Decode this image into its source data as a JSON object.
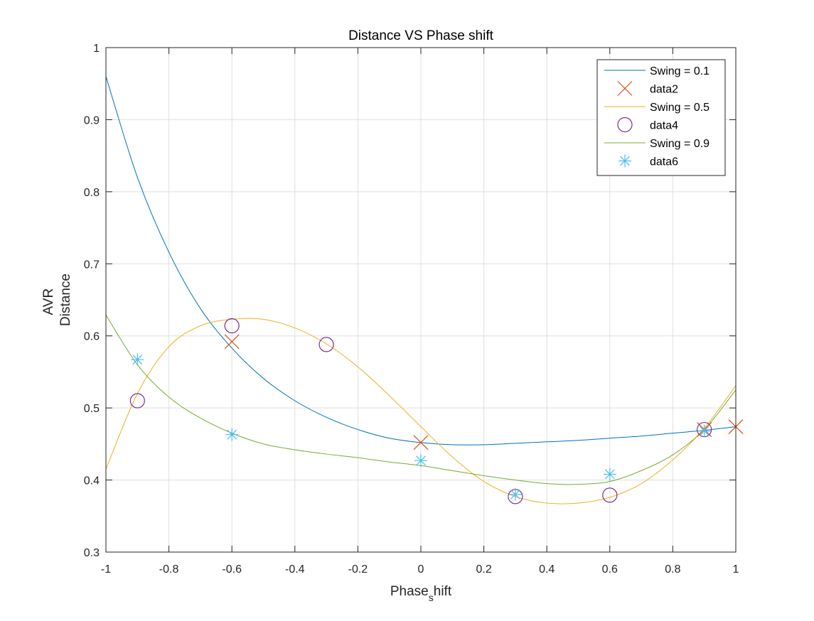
{
  "chart_data": {
    "type": "line",
    "title": "Distance VS Phase shift",
    "xlabel": {
      "base": "Phase",
      "sub": "s",
      "rest": "hift"
    },
    "ylabel": [
      "AVR",
      "Distance"
    ],
    "xlim": [
      -1,
      1
    ],
    "ylim": [
      0.3,
      1
    ],
    "xticks": [
      "-1",
      "-0.8",
      "-0.6",
      "-0.4",
      "-0.2",
      "0",
      "0.2",
      "0.4",
      "0.6",
      "0.8",
      "1"
    ],
    "yticks": [
      "0.3",
      "0.4",
      "0.5",
      "0.6",
      "0.7",
      "0.8",
      "0.9",
      "1"
    ],
    "grid": true,
    "legend_position": "top-right",
    "series": [
      {
        "name": "Swing = 0.1",
        "kind": "line",
        "color": "#0072BD",
        "x": [
          -1,
          -0.9,
          -0.8,
          -0.7,
          -0.6,
          -0.5,
          -0.4,
          -0.3,
          -0.2,
          -0.1,
          0,
          0.1,
          0.2,
          0.3,
          0.4,
          0.5,
          0.6,
          0.7,
          0.8,
          0.9,
          1
        ],
        "y": [
          0.96,
          0.82,
          0.716,
          0.638,
          0.583,
          0.541,
          0.51,
          0.487,
          0.47,
          0.458,
          0.452,
          0.449,
          0.449,
          0.451,
          0.453,
          0.455,
          0.458,
          0.461,
          0.465,
          0.469,
          0.474
        ]
      },
      {
        "name": "data2",
        "kind": "marker",
        "marker": "x",
        "color": "#D95319",
        "x": [
          -0.6,
          0,
          0.9,
          1
        ],
        "y": [
          0.592,
          0.452,
          0.47,
          0.474
        ]
      },
      {
        "name": "Swing = 0.5",
        "kind": "line",
        "color": "#EDB120",
        "x": [
          -1,
          -0.9,
          -0.8,
          -0.7,
          -0.6,
          -0.5,
          -0.4,
          -0.3,
          -0.2,
          -0.1,
          0,
          0.1,
          0.2,
          0.3,
          0.4,
          0.5,
          0.6,
          0.7,
          0.8,
          0.9,
          1
        ],
        "y": [
          0.415,
          0.52,
          0.585,
          0.614,
          0.623,
          0.623,
          0.611,
          0.589,
          0.557,
          0.517,
          0.474,
          0.432,
          0.398,
          0.377,
          0.368,
          0.368,
          0.376,
          0.395,
          0.428,
          0.472,
          0.531
        ]
      },
      {
        "name": "data4",
        "kind": "marker",
        "marker": "o",
        "color": "#7E2F8E",
        "x": [
          -0.9,
          -0.6,
          -0.3,
          0.3,
          0.6,
          0.9
        ],
        "y": [
          0.51,
          0.614,
          0.588,
          0.377,
          0.379,
          0.47
        ]
      },
      {
        "name": "Swing = 0.9",
        "kind": "line",
        "color": "#77AC30",
        "x": [
          -1,
          -0.9,
          -0.8,
          -0.7,
          -0.6,
          -0.5,
          -0.4,
          -0.3,
          -0.2,
          -0.1,
          0,
          0.1,
          0.2,
          0.3,
          0.4,
          0.5,
          0.6,
          0.7,
          0.8,
          0.9,
          1
        ],
        "y": [
          0.629,
          0.56,
          0.515,
          0.486,
          0.465,
          0.45,
          0.442,
          0.436,
          0.431,
          0.425,
          0.42,
          0.413,
          0.406,
          0.4,
          0.395,
          0.394,
          0.398,
          0.413,
          0.435,
          0.47,
          0.525
        ]
      },
      {
        "name": "data6",
        "kind": "marker",
        "marker": "*",
        "color": "#4DBEEE",
        "x": [
          -0.9,
          -0.6,
          0,
          0.3,
          0.6,
          0.9
        ],
        "y": [
          0.567,
          0.463,
          0.427,
          0.38,
          0.408,
          0.468
        ]
      }
    ]
  }
}
